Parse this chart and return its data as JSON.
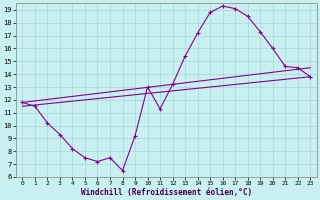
{
  "xlabel": "Windchill (Refroidissement éolien,°C)",
  "background_color": "#c8f0f0",
  "grid_color": "#a8d8d8",
  "line_color": "#880088",
  "xlim": [
    -0.5,
    23.5
  ],
  "ylim": [
    6,
    19.5
  ],
  "xticks": [
    0,
    1,
    2,
    3,
    4,
    5,
    6,
    7,
    8,
    9,
    10,
    11,
    12,
    13,
    14,
    15,
    16,
    17,
    18,
    19,
    20,
    21,
    22,
    23
  ],
  "yticks": [
    6,
    7,
    8,
    9,
    10,
    11,
    12,
    13,
    14,
    15,
    16,
    17,
    18,
    19
  ],
  "series1_x": [
    0,
    1,
    2,
    3,
    4,
    5,
    6,
    7,
    8,
    9,
    10,
    11,
    12,
    13,
    14,
    15,
    16,
    17,
    18,
    19,
    20,
    21,
    22,
    23
  ],
  "series1_y": [
    11.8,
    11.5,
    10.2,
    9.3,
    8.2,
    7.5,
    7.2,
    7.5,
    6.5,
    9.2,
    13.0,
    11.3,
    13.2,
    15.4,
    17.2,
    18.8,
    19.3,
    19.1,
    18.5,
    17.3,
    16.0,
    14.6,
    14.5,
    13.8
  ],
  "series2_x": [
    0,
    23
  ],
  "series2_y": [
    11.8,
    14.5
  ],
  "series3_x": [
    0,
    23
  ],
  "series3_y": [
    11.5,
    13.8
  ]
}
